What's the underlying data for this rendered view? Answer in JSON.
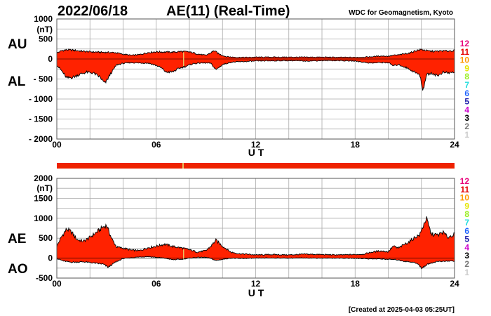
{
  "header": {
    "date": "2022/06/18",
    "title": "AE(11) (Real-Time)",
    "source": "WDC for Geomagnetism, Kyoto",
    "created": "[Created at 2025-04-03 05:25UT]"
  },
  "colors": {
    "fill": "#ff2200",
    "grid": "#a9a9a9",
    "bar": "#ee2200",
    "gap": "#e8c060"
  },
  "station_scale": [
    {
      "label": "12",
      "color": "#e8007a"
    },
    {
      "label": "11",
      "color": "#e60000"
    },
    {
      "label": "10",
      "color": "#ff9900"
    },
    {
      "label": "9",
      "color": "#e5e500"
    },
    {
      "label": "8",
      "color": "#99ee22"
    },
    {
      "label": "7",
      "color": "#22dddd"
    },
    {
      "label": "6",
      "color": "#2266ff"
    },
    {
      "label": "5",
      "color": "#1a1aaa"
    },
    {
      "label": "4",
      "color": "#cc00cc"
    },
    {
      "label": "3",
      "color": "#000000"
    },
    {
      "label": "2",
      "color": "#777777"
    },
    {
      "label": "1",
      "color": "#cccccc"
    }
  ],
  "chart_data": [
    {
      "type": "area",
      "panel": "top",
      "series": [
        {
          "name": "AU",
          "x": [
            0,
            0.3,
            0.6,
            1,
            1.4,
            1.8,
            2.2,
            2.6,
            3,
            3.5,
            4,
            4.5,
            5,
            5.5,
            6,
            6.5,
            7,
            7.5,
            8,
            8.5,
            9,
            9.3,
            9.5,
            9.8,
            10.2,
            10.6,
            11,
            11.5,
            12,
            13,
            14,
            15,
            16,
            17,
            18,
            18.5,
            19,
            19.5,
            20,
            20.3,
            20.6,
            21,
            21.3,
            21.6,
            22,
            22.4,
            22.8,
            23.2,
            23.6,
            24
          ],
          "y": [
            150,
            210,
            230,
            220,
            200,
            185,
            175,
            170,
            165,
            160,
            120,
            90,
            110,
            160,
            180,
            175,
            170,
            190,
            175,
            125,
            90,
            160,
            210,
            120,
            60,
            45,
            40,
            40,
            45,
            45,
            45,
            45,
            45,
            40,
            40,
            45,
            55,
            75,
            70,
            90,
            100,
            130,
            150,
            200,
            240,
            200,
            190,
            200,
            200,
            210
          ]
        },
        {
          "name": "AL",
          "x": [
            0,
            0.3,
            0.6,
            1,
            1.4,
            1.8,
            2.2,
            2.6,
            2.9,
            3.2,
            3.6,
            4,
            4.5,
            5,
            5.5,
            6,
            6.3,
            6.6,
            7,
            7.4,
            7.8,
            8.2,
            8.6,
            9,
            9.3,
            9.6,
            10,
            10.5,
            11,
            11.5,
            12,
            13,
            14,
            15,
            16,
            17,
            18,
            18.5,
            19,
            19.5,
            20,
            20.3,
            20.6,
            21,
            21.3,
            21.6,
            21.9,
            22.1,
            22.3,
            22.6,
            23,
            23.3,
            23.6,
            24
          ],
          "y": [
            -150,
            -300,
            -480,
            -450,
            -380,
            -330,
            -350,
            -450,
            -620,
            -400,
            -150,
            -110,
            -90,
            -100,
            -100,
            -160,
            -220,
            -330,
            -320,
            -230,
            -180,
            -120,
            -100,
            -100,
            -110,
            -270,
            -140,
            -80,
            -70,
            -60,
            -50,
            -45,
            -40,
            -50,
            -40,
            -40,
            -50,
            -80,
            -100,
            -90,
            -90,
            -170,
            -140,
            -200,
            -260,
            -330,
            -400,
            -780,
            -400,
            -350,
            -420,
            -330,
            -350,
            -330
          ]
        }
      ],
      "xlabel": "U T",
      "xticks": [
        "00",
        "06",
        "12",
        "18",
        "24"
      ],
      "ylabel": "(nT)",
      "yticks": [
        "1000",
        "500",
        "0",
        "- 500",
        "- 1000",
        "- 1500",
        "- 2000"
      ],
      "xlim": [
        0,
        24
      ],
      "ylim": [
        -2000,
        1000
      ],
      "side_labels": [
        "AU",
        "AL"
      ]
    },
    {
      "type": "area",
      "panel": "bottom",
      "series": [
        {
          "name": "AE",
          "x": [
            0,
            0.3,
            0.6,
            0.9,
            1.2,
            1.6,
            2,
            2.4,
            2.8,
            3,
            3.3,
            3.6,
            4,
            4.5,
            5,
            5.5,
            6,
            6.5,
            7,
            7.5,
            8,
            8.5,
            9,
            9.3,
            9.6,
            10,
            10.5,
            11,
            11.5,
            12,
            13,
            14,
            15,
            16,
            17,
            18,
            18.5,
            19,
            19.5,
            20,
            20.3,
            20.6,
            21,
            21.3,
            21.6,
            21.9,
            22.1,
            22.3,
            22.6,
            23,
            23.3,
            23.6,
            24
          ],
          "y": [
            300,
            550,
            730,
            650,
            470,
            420,
            520,
            650,
            780,
            820,
            500,
            280,
            250,
            200,
            190,
            260,
            300,
            350,
            290,
            260,
            210,
            150,
            190,
            300,
            450,
            300,
            150,
            110,
            100,
            80,
            90,
            80,
            100,
            90,
            80,
            90,
            100,
            150,
            180,
            160,
            300,
            250,
            350,
            420,
            520,
            580,
            800,
            1000,
            600,
            580,
            650,
            520,
            600
          ]
        },
        {
          "name": "AO",
          "x": [
            0,
            0.4,
            0.8,
            1.2,
            1.6,
            2,
            2.4,
            2.8,
            3.1,
            3.5,
            4,
            4.5,
            5,
            5.5,
            6,
            6.5,
            7,
            7.5,
            8,
            8.5,
            9,
            9.3,
            9.6,
            10,
            10.5,
            11,
            12,
            13,
            14,
            15,
            16,
            17,
            18,
            18.5,
            19,
            19.5,
            20,
            20.5,
            21,
            21.5,
            21.8,
            22,
            22.2,
            22.5,
            23,
            23.4,
            23.8,
            24
          ],
          "y": [
            -10,
            -70,
            -100,
            -100,
            -90,
            -110,
            -130,
            -150,
            -230,
            -110,
            -10,
            10,
            30,
            40,
            20,
            0,
            -40,
            -30,
            0,
            20,
            20,
            -10,
            -60,
            -30,
            0,
            -10,
            0,
            5,
            0,
            5,
            0,
            0,
            -5,
            -10,
            -20,
            -20,
            -30,
            -40,
            -80,
            -100,
            -150,
            -250,
            -200,
            -130,
            -80,
            -80,
            -70,
            -80
          ]
        }
      ],
      "xlabel": "U T",
      "xticks": [
        "00",
        "06",
        "12",
        "18",
        "24"
      ],
      "ylabel": "(nT)",
      "yticks": [
        "2000",
        "1500",
        "1000",
        "500",
        "0",
        "-500"
      ],
      "xlim": [
        0,
        24
      ],
      "ylim": [
        -500,
        2000
      ],
      "side_labels": [
        "AE",
        "AO"
      ]
    }
  ]
}
